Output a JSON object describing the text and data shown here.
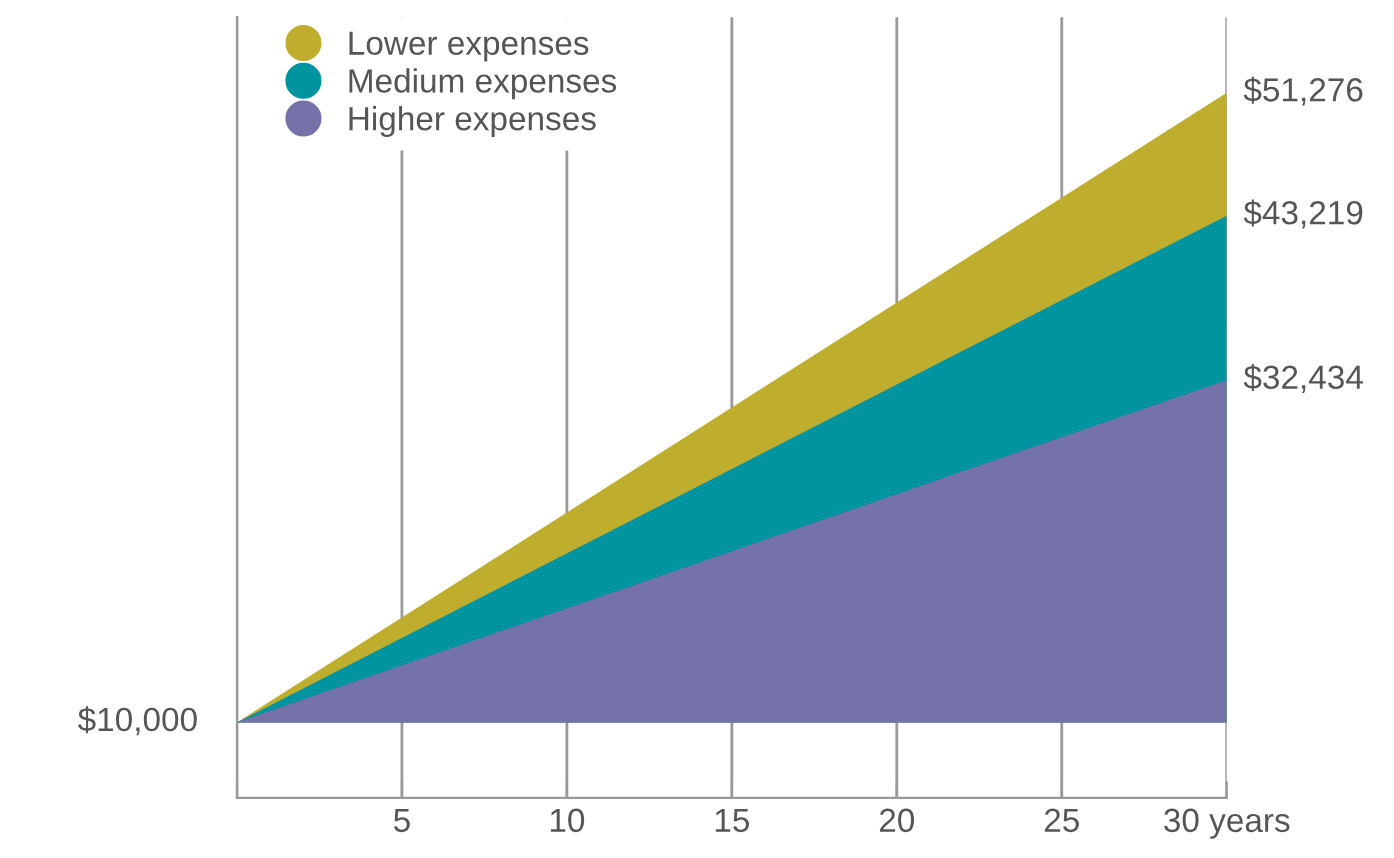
{
  "chart_data": {
    "type": "area",
    "x": [
      0,
      30
    ],
    "series": [
      {
        "name": "Lower expenses",
        "color": "#bfae2e",
        "values": [
          10000,
          51276
        ],
        "value_labels": [
          null,
          "$51,276"
        ]
      },
      {
        "name": "Medium expenses",
        "color": "#0093a0",
        "values": [
          10000,
          43219
        ],
        "value_labels": [
          null,
          "$43,219"
        ]
      },
      {
        "name": "Higher expenses",
        "color": "#7472a8",
        "values": [
          10000,
          32434
        ],
        "value_labels": [
          "$10,000",
          "$32,434"
        ]
      }
    ],
    "xlim": [
      0,
      30
    ],
    "xticks": [
      {
        "value": 0,
        "label": null
      },
      5,
      10,
      15,
      20,
      25,
      {
        "value": 30,
        "label": "30 years"
      }
    ],
    "grid": "x",
    "legend": "top left"
  }
}
